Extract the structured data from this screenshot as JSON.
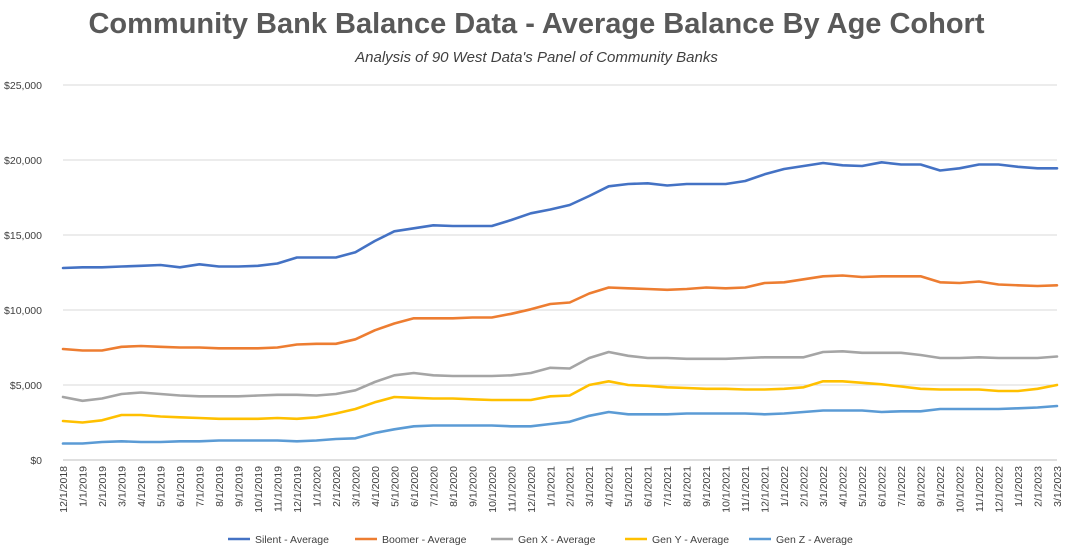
{
  "chart_data": {
    "type": "line",
    "title": "Community Bank Balance Data - Average Balance By Age Cohort",
    "subtitle": "Analysis of 90 West Data's Panel of Community Banks",
    "xlabel": "",
    "ylabel": "",
    "ylim": [
      0,
      25000
    ],
    "y_ticks": [
      "$0",
      "$5,000",
      "$10,000",
      "$15,000",
      "$20,000",
      "$25,000"
    ],
    "y_tick_values": [
      0,
      5000,
      10000,
      15000,
      20000,
      25000
    ],
    "grid": "horizontal",
    "legend": "bottom",
    "x": [
      "12/1/2018",
      "1/1/2019",
      "2/1/2019",
      "3/1/2019",
      "4/1/2019",
      "5/1/2019",
      "6/1/2019",
      "7/1/2019",
      "8/1/2019",
      "9/1/2019",
      "10/1/2019",
      "11/1/2019",
      "12/1/2019",
      "1/1/2020",
      "2/1/2020",
      "3/1/2020",
      "4/1/2020",
      "5/1/2020",
      "6/1/2020",
      "7/1/2020",
      "8/1/2020",
      "9/1/2020",
      "10/1/2020",
      "11/1/2020",
      "12/1/2020",
      "1/1/2021",
      "2/1/2021",
      "3/1/2021",
      "4/1/2021",
      "5/1/2021",
      "6/1/2021",
      "7/1/2021",
      "8/1/2021",
      "9/1/2021",
      "10/1/2021",
      "11/1/2021",
      "12/1/2021",
      "1/1/2022",
      "2/1/2022",
      "3/1/2022",
      "4/1/2022",
      "5/1/2022",
      "6/1/2022",
      "7/1/2022",
      "8/1/2022",
      "9/1/2022",
      "10/1/2022",
      "11/1/2022",
      "12/1/2022",
      "1/1/2023",
      "2/1/2023",
      "3/1/2023"
    ],
    "series": [
      {
        "name": "Silent - Average",
        "color": "#4472C4",
        "values": [
          12800,
          12850,
          12850,
          12900,
          12950,
          13000,
          12850,
          13050,
          12900,
          12900,
          12950,
          13100,
          13500,
          13500,
          13500,
          13850,
          14600,
          15250,
          15450,
          15650,
          15600,
          15600,
          15600,
          16000,
          16450,
          16700,
          17000,
          17600,
          18250,
          18400,
          18450,
          18300,
          18400,
          18400,
          18400,
          18600,
          19050,
          19400,
          19600,
          19800,
          19650,
          19600,
          19850,
          19700,
          19700,
          19300,
          19450,
          19700,
          19700,
          19550,
          19450,
          19450
        ]
      },
      {
        "name": "Boomer - Average",
        "color": "#ED7D31",
        "values": [
          7400,
          7300,
          7300,
          7550,
          7600,
          7550,
          7500,
          7500,
          7450,
          7450,
          7450,
          7500,
          7700,
          7750,
          7750,
          8050,
          8650,
          9100,
          9450,
          9450,
          9450,
          9500,
          9500,
          9750,
          10050,
          10400,
          10500,
          11100,
          11500,
          11450,
          11400,
          11350,
          11400,
          11500,
          11450,
          11500,
          11800,
          11850,
          12050,
          12250,
          12300,
          12200,
          12250,
          12250,
          12250,
          11850,
          11800,
          11900,
          11700,
          11650,
          11600,
          11650
        ]
      },
      {
        "name": "Gen X - Average",
        "color": "#A5A5A5",
        "values": [
          4200,
          3950,
          4100,
          4400,
          4500,
          4400,
          4300,
          4250,
          4250,
          4250,
          4300,
          4350,
          4350,
          4300,
          4400,
          4650,
          5200,
          5650,
          5800,
          5650,
          5600,
          5600,
          5600,
          5650,
          5800,
          6150,
          6100,
          6800,
          7200,
          6950,
          6800,
          6800,
          6750,
          6750,
          6750,
          6800,
          6850,
          6850,
          6850,
          7200,
          7250,
          7150,
          7150,
          7150,
          7000,
          6800,
          6800,
          6850,
          6800,
          6800,
          6800,
          6900
        ]
      },
      {
        "name": "Gen Y - Average",
        "color": "#FFC000",
        "values": [
          2600,
          2500,
          2650,
          3000,
          3000,
          2900,
          2850,
          2800,
          2750,
          2750,
          2750,
          2800,
          2750,
          2850,
          3100,
          3400,
          3850,
          4200,
          4150,
          4100,
          4100,
          4050,
          4000,
          4000,
          4000,
          4250,
          4300,
          5000,
          5250,
          5000,
          4950,
          4850,
          4800,
          4750,
          4750,
          4700,
          4700,
          4750,
          4850,
          5250,
          5250,
          5150,
          5050,
          4900,
          4750,
          4700,
          4700,
          4700,
          4600,
          4600,
          4750,
          5000
        ]
      },
      {
        "name": "Gen Z - Average",
        "color": "#5B9BD5",
        "values": [
          1100,
          1100,
          1200,
          1250,
          1200,
          1200,
          1250,
          1250,
          1300,
          1300,
          1300,
          1300,
          1250,
          1300,
          1400,
          1450,
          1800,
          2050,
          2250,
          2300,
          2300,
          2300,
          2300,
          2250,
          2250,
          2400,
          2550,
          2950,
          3200,
          3050,
          3050,
          3050,
          3100,
          3100,
          3100,
          3100,
          3050,
          3100,
          3200,
          3300,
          3300,
          3300,
          3200,
          3250,
          3250,
          3400,
          3400,
          3400,
          3400,
          3450,
          3500,
          3600
        ]
      }
    ]
  }
}
